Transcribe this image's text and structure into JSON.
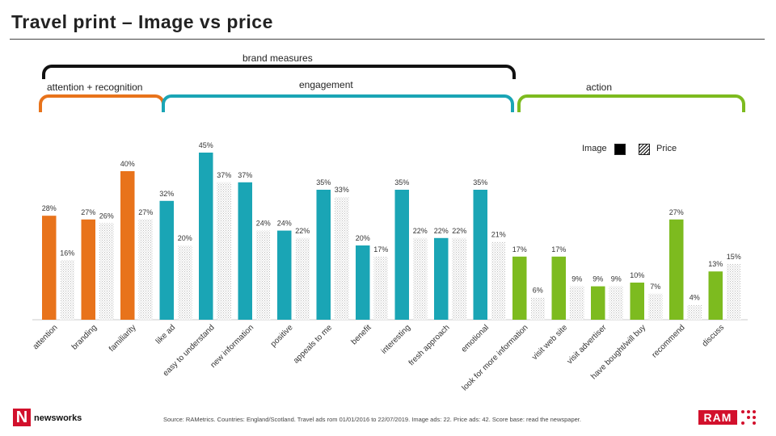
{
  "title": "Travel print – Image vs price",
  "brand_measures": "brand measures",
  "groups": {
    "attention": "attention",
    "plus": "+",
    "recognition": "recognition",
    "engagement": "engagement",
    "action": "action"
  },
  "legend": {
    "image": "Image",
    "price": "Price"
  },
  "colors": {
    "attention": "#e8731b",
    "engagement": "#1aa5b5",
    "action": "#7dbb1f",
    "brand_bracket": "#111111"
  },
  "source": "Source: RAMetrics. Countries: England/Scotland. Travel ads rom 01/01/2016 to 22/07/2019. Image ads: 22. Price ads: 42. Score base: read the newspaper.",
  "logos": {
    "left_mark": "N",
    "left_name": "newsworks",
    "right_name": "RAM"
  },
  "chart_data": {
    "type": "bar",
    "categories": [
      "attention",
      "branding",
      "familiarity",
      "like ad",
      "easy to understand",
      "new information",
      "positive",
      "appeals to me",
      "benefit",
      "interesting",
      "fresh approach",
      "emotional",
      "look for more information",
      "visit web site",
      "visit advertiser",
      "have bought/will buy",
      "recommend",
      "discuss"
    ],
    "group_of_category": [
      "attention",
      "attention",
      "attention",
      "engagement",
      "engagement",
      "engagement",
      "engagement",
      "engagement",
      "engagement",
      "engagement",
      "engagement",
      "engagement",
      "action",
      "action",
      "action",
      "action",
      "action",
      "action"
    ],
    "series": [
      {
        "name": "Image",
        "values": [
          28,
          27,
          40,
          32,
          45,
          37,
          24,
          35,
          20,
          35,
          22,
          35,
          17,
          17,
          9,
          10,
          27,
          13
        ]
      },
      {
        "name": "Price",
        "values": [
          16,
          26,
          27,
          20,
          37,
          24,
          22,
          33,
          17,
          22,
          22,
          21,
          6,
          9,
          9,
          7,
          4,
          15
        ]
      }
    ],
    "labels": [
      [
        "28%",
        "16%"
      ],
      [
        "27%",
        "26%"
      ],
      [
        "40%",
        "27%"
      ],
      [
        "32%",
        "20%"
      ],
      [
        "45%",
        "37%"
      ],
      [
        "37%",
        "24%"
      ],
      [
        "24%",
        "22%"
      ],
      [
        "35%",
        "33%"
      ],
      [
        "20%",
        "17%"
      ],
      [
        "35%",
        "22%"
      ],
      [
        "22%",
        "22%"
      ],
      [
        "35%",
        "21%"
      ],
      [
        "17%",
        "6%"
      ],
      [
        "17%",
        "9%"
      ],
      [
        "9%",
        "9%"
      ],
      [
        "10%",
        "7%"
      ],
      [
        "27%",
        "4%"
      ],
      [
        "13%",
        "15%"
      ]
    ],
    "ylim": [
      0,
      50
    ]
  }
}
